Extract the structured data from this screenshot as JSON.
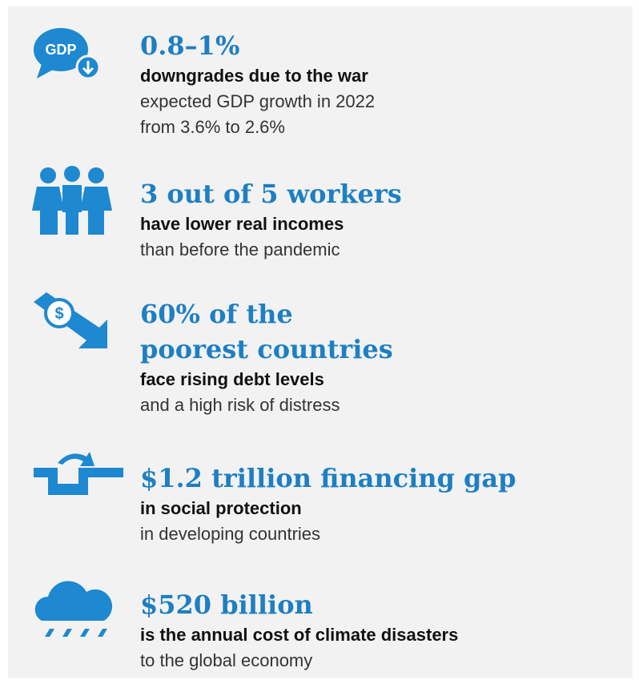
{
  "items": [
    {
      "icon_label": "GDP",
      "headline": [
        "0.8–1%"
      ],
      "bold": "downgrades due to the war",
      "lines": [
        "expected GDP growth in 2022",
        "from 3.6% to 2.6%"
      ]
    },
    {
      "headline": [
        "3 out of 5 workers"
      ],
      "bold": "have lower real incomes",
      "lines": [
        "than before the pandemic"
      ]
    },
    {
      "icon_label": "$",
      "headline": [
        "60% of the",
        "poorest countries"
      ],
      "bold": "face rising debt levels",
      "lines": [
        "and a high risk of distress"
      ]
    },
    {
      "headline": [
        "$1.2 trillion financing gap"
      ],
      "bold": "in social protection",
      "lines": [
        "in developing countries"
      ]
    },
    {
      "headline": [
        "$520 billion"
      ],
      "bold": "is the annual cost of climate disasters",
      "lines": [
        "to the global economy"
      ]
    }
  ]
}
